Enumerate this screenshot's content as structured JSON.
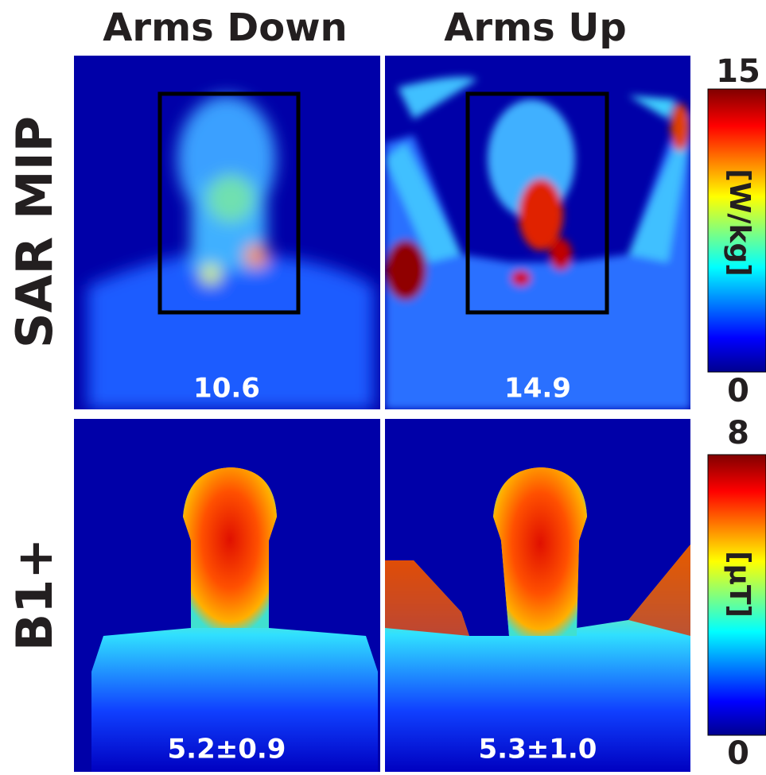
{
  "column_titles": [
    "Arms Down",
    "Arms Up"
  ],
  "rows": [
    {
      "label": "SAR MIP",
      "panels": [
        "10.6",
        "14.9"
      ],
      "colorbar": {
        "max": 15,
        "min": 0,
        "unit": "[W/kg]"
      }
    },
    {
      "label": "B1+",
      "panels": [
        "5.2±0.9",
        "5.3±1.0"
      ],
      "colorbar": {
        "max": 8,
        "min": 0,
        "unit": "[µT]"
      }
    }
  ]
}
